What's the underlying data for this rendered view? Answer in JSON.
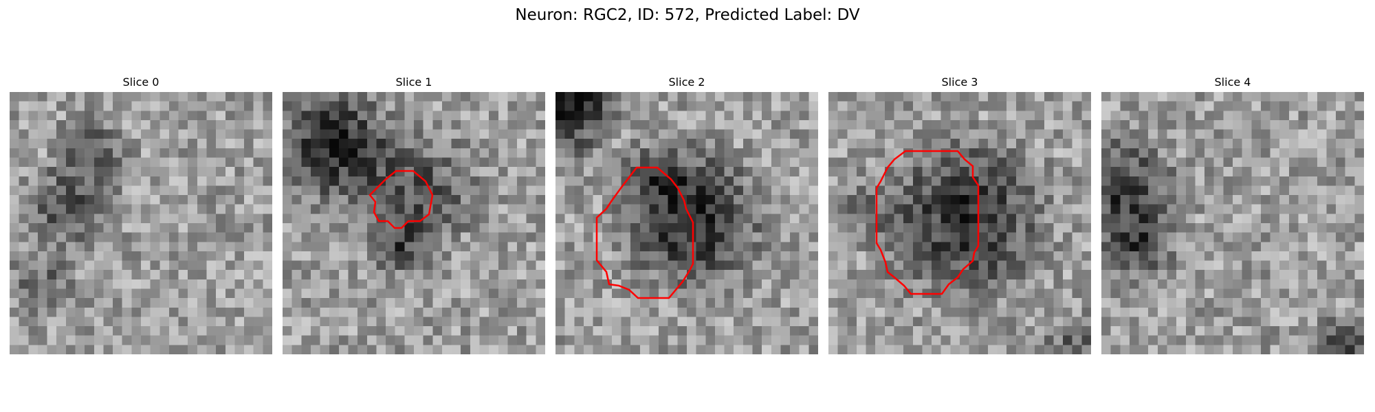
{
  "figure": {
    "title": "Neuron: RGC2, ID: 572, Predicted Label: DV"
  },
  "panels": [
    {
      "title": "Slice 0",
      "has_contour": false,
      "contour_color": "#ff0000"
    },
    {
      "title": "Slice 1",
      "has_contour": true,
      "contour_color": "#ff0000"
    },
    {
      "title": "Slice 2",
      "has_contour": true,
      "contour_color": "#ff0000"
    },
    {
      "title": "Slice 3",
      "has_contour": true,
      "contour_color": "#ff0000"
    },
    {
      "title": "Slice 4",
      "has_contour": false,
      "contour_color": "#ff0000"
    }
  ],
  "colormap": "gray"
}
